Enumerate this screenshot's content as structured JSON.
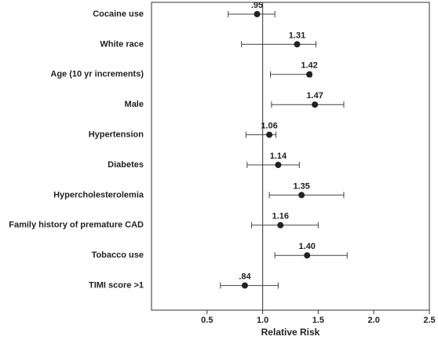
{
  "chart_data": {
    "type": "forest",
    "x_label": "Relative Risk",
    "categories": [
      "Cocaine use",
      "White race",
      "Age (10 yr increments)",
      "Male",
      "Hypertension",
      "Diabetes",
      "Hypercholesterolemia",
      "Family history of premature CAD",
      "Tobacco use",
      "TIMI score >1"
    ],
    "values": [
      0.95,
      1.31,
      1.42,
      1.47,
      1.06,
      1.14,
      1.35,
      1.16,
      1.4,
      0.84
    ],
    "value_labels": [
      ".95",
      "1.31",
      "1.42",
      "1.47",
      "1.06",
      "1.14",
      "1.35",
      "1.16",
      "1.40",
      ".84"
    ],
    "lower": [
      0.69,
      0.81,
      1.07,
      1.08,
      0.85,
      0.86,
      1.06,
      0.9,
      1.11,
      0.62
    ],
    "upper": [
      1.11,
      1.48,
      1.44,
      1.73,
      1.12,
      1.33,
      1.73,
      1.5,
      1.76,
      1.14
    ],
    "color": "#222222",
    "reference_line": 1,
    "xlim": [
      0,
      2.5
    ],
    "xticks": [
      0.5,
      {
        "value": 1.0,
        "label": "1.0"
      },
      1.5,
      {
        "value": 2.0,
        "label": "2.0"
      },
      2.5
    ]
  }
}
